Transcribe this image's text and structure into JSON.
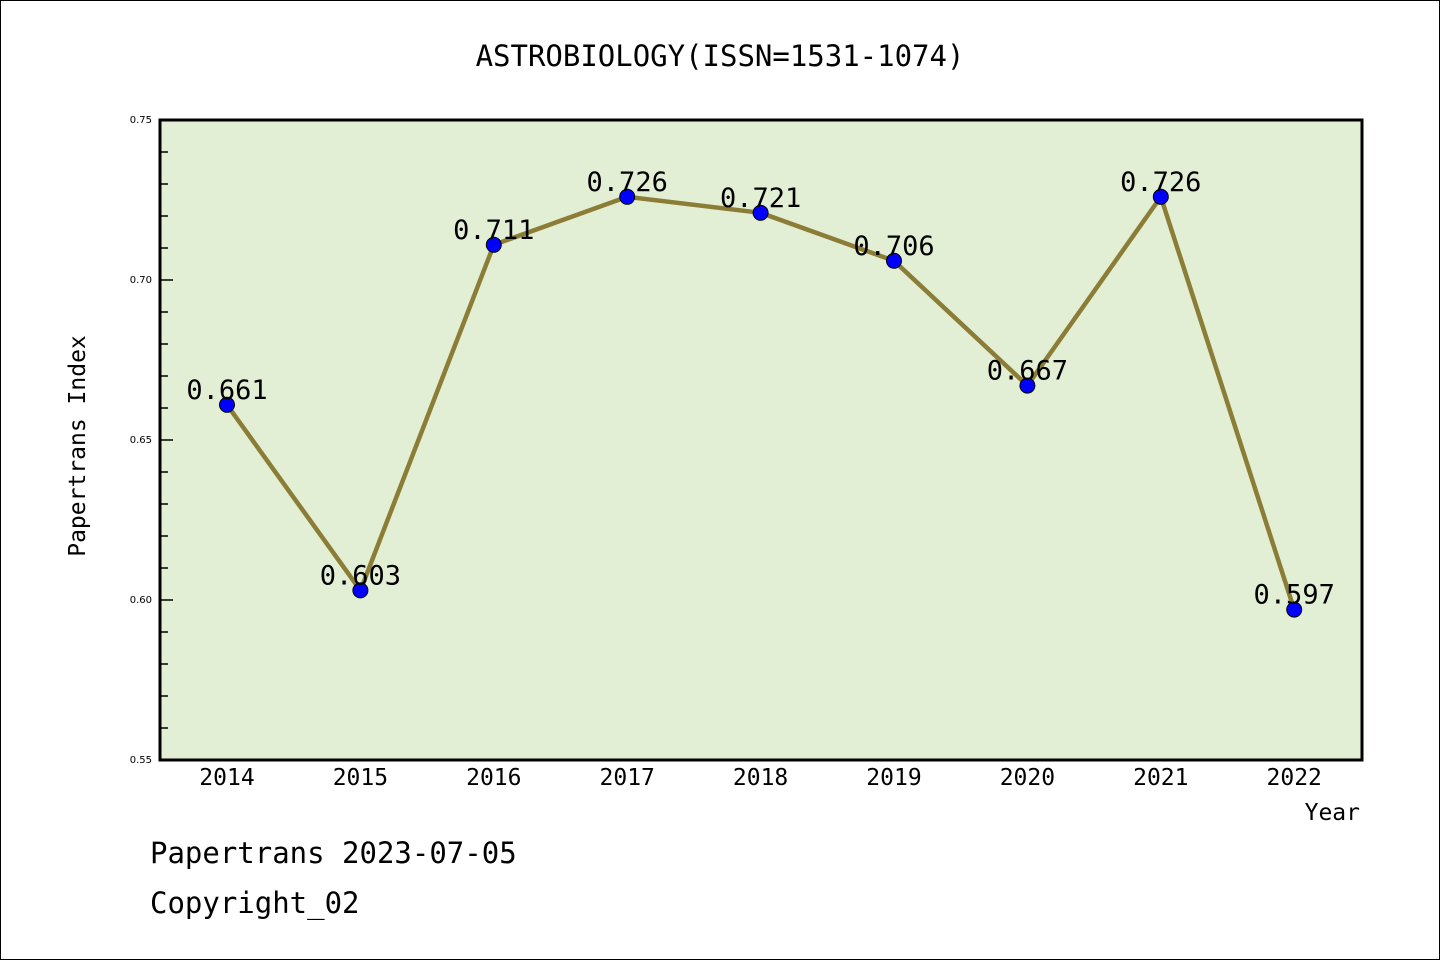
{
  "chart_data": {
    "type": "line",
    "title": "ASTROBIOLOGY(ISSN=1531-1074)",
    "xlabel": "Year",
    "ylabel": "Papertrans Index",
    "categories": [
      "2014",
      "2015",
      "2016",
      "2017",
      "2018",
      "2019",
      "2020",
      "2021",
      "2022"
    ],
    "values": [
      0.661,
      0.603,
      0.711,
      0.726,
      0.721,
      0.706,
      0.667,
      0.726,
      0.597
    ],
    "data_labels": [
      "0.661",
      "0.603",
      "0.711",
      "0.726",
      "0.721",
      "0.706",
      "0.667",
      "0.726",
      "0.597"
    ],
    "ylim": [
      0.55,
      0.75
    ],
    "yticks": [
      "0.55",
      "0.60",
      "0.65",
      "0.70",
      "0.75"
    ],
    "grid": false,
    "colors": {
      "line": "#8b7d36",
      "marker": "#0000ff",
      "background": "#e2efd5"
    }
  },
  "footer": {
    "line1": "Papertrans 2023-07-05",
    "line2": "Copyright_02"
  }
}
